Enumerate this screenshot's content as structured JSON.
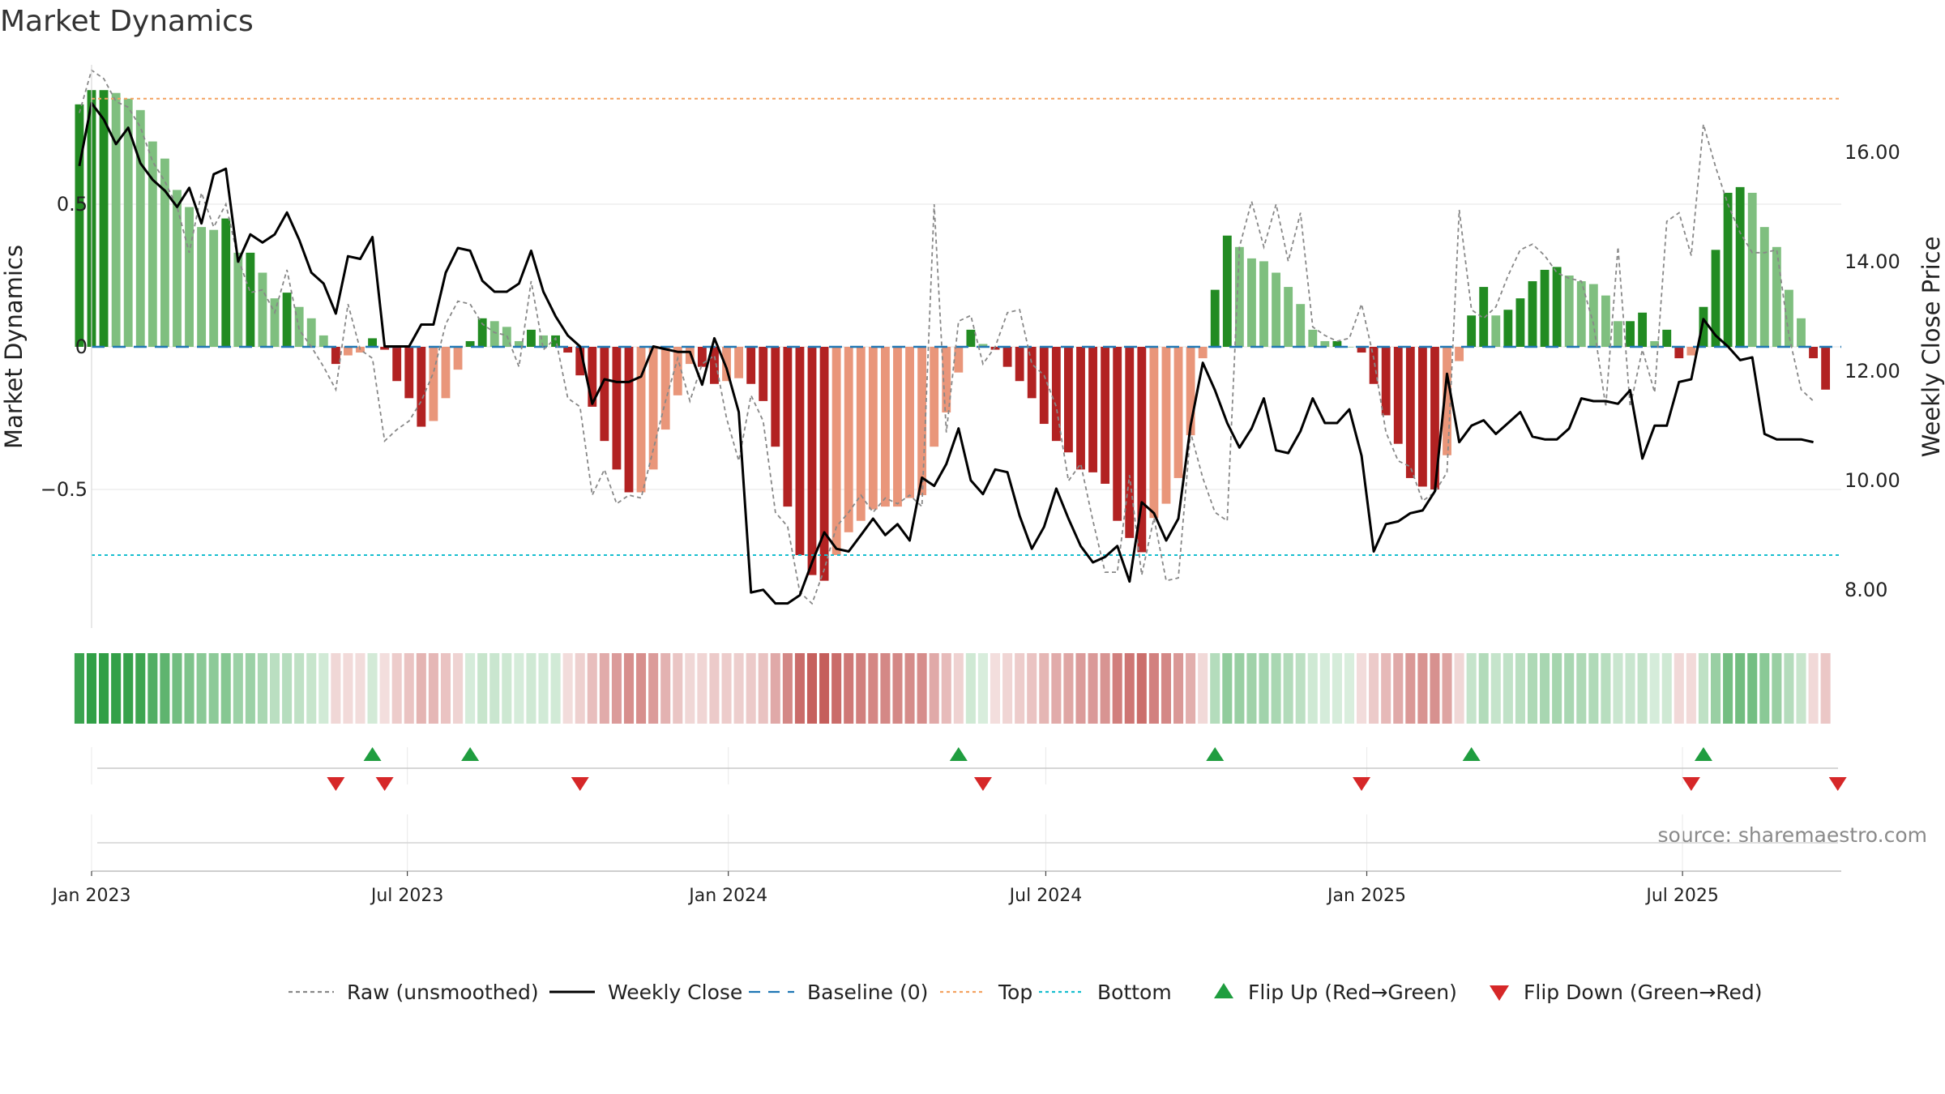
{
  "chart_data": {
    "type": "bar",
    "title": "Market Dynamics",
    "ylabel_left": "Market Dynamics",
    "ylabel_right": "Weekly Close Price",
    "ylim_left": [
      -0.98,
      0.98
    ],
    "ylim_right": [
      7.3,
      17.6
    ],
    "left_ticks": [
      0.5,
      0,
      -0.5
    ],
    "left_tick_labels": [
      "0.5",
      "0",
      "−0.5"
    ],
    "right_ticks": [
      16,
      14,
      12,
      10,
      8
    ],
    "right_tick_labels": [
      "16.00",
      "14.00",
      "12.00",
      "10.00",
      "8.00"
    ],
    "x_start": "2023-01-01",
    "x_end": "2025-09-30",
    "x_ticks": [
      "2023-01-01",
      "2023-07-01",
      "2024-01-01",
      "2024-07-01",
      "2025-01-01",
      "2025-07-01"
    ],
    "x_tick_labels": [
      "Jan 2023",
      "Jul 2023",
      "Jan 2024",
      "Jul 2024",
      "Jan 2025",
      "Jul 2025"
    ],
    "first_week": "2022-12-25",
    "top_line": 0.87,
    "bottom_line": -0.73,
    "baseline": 0,
    "grid": true,
    "momentum": [
      0.85,
      0.9,
      0.9,
      0.89,
      0.87,
      0.83,
      0.72,
      0.66,
      0.55,
      0.49,
      0.42,
      0.41,
      0.45,
      0.33,
      0.33,
      0.26,
      0.17,
      0.19,
      0.14,
      0.1,
      0.04,
      -0.06,
      -0.03,
      -0.02,
      0.03,
      -0.01,
      -0.12,
      -0.18,
      -0.28,
      -0.26,
      -0.18,
      -0.08,
      0.02,
      0.1,
      0.09,
      0.07,
      0.02,
      0.06,
      0.04,
      0.04,
      -0.02,
      -0.1,
      -0.21,
      -0.33,
      -0.43,
      -0.51,
      -0.51,
      -0.43,
      -0.29,
      -0.17,
      -0.06,
      -0.07,
      -0.13,
      -0.12,
      -0.11,
      -0.13,
      -0.19,
      -0.35,
      -0.56,
      -0.73,
      -0.8,
      -0.82,
      -0.73,
      -0.65,
      -0.61,
      -0.57,
      -0.56,
      -0.56,
      -0.53,
      -0.52,
      -0.35,
      -0.23,
      -0.09,
      0.06,
      0.01,
      -0.01,
      -0.07,
      -0.12,
      -0.18,
      -0.27,
      -0.33,
      -0.37,
      -0.43,
      -0.44,
      -0.48,
      -0.61,
      -0.67,
      -0.72,
      -0.6,
      -0.55,
      -0.46,
      -0.31,
      -0.04,
      0.2,
      0.39,
      0.35,
      0.31,
      0.3,
      0.26,
      0.21,
      0.15,
      0.06,
      0.02,
      0.02,
      0.0,
      -0.02,
      -0.13,
      -0.24,
      -0.34,
      -0.46,
      -0.49,
      -0.5,
      -0.38,
      -0.05,
      0.11,
      0.21,
      0.11,
      0.13,
      0.17,
      0.23,
      0.27,
      0.28,
      0.25,
      0.23,
      0.22,
      0.18,
      0.09,
      0.09,
      0.12,
      0.02,
      0.06,
      -0.04,
      -0.03,
      0.14,
      0.34,
      0.54,
      0.56,
      0.54,
      0.42,
      0.35,
      0.2,
      0.1,
      -0.04,
      -0.15
    ],
    "raw": [
      0.82,
      0.97,
      0.94,
      0.86,
      0.84,
      0.77,
      0.65,
      0.58,
      0.49,
      0.33,
      0.54,
      0.42,
      0.5,
      0.31,
      0.19,
      0.2,
      0.12,
      0.27,
      0.06,
      0.0,
      -0.07,
      -0.15,
      0.15,
      -0.01,
      -0.04,
      -0.33,
      -0.29,
      -0.26,
      -0.19,
      -0.09,
      0.08,
      0.16,
      0.15,
      0.08,
      0.05,
      0.04,
      -0.07,
      0.23,
      -0.01,
      0.03,
      -0.18,
      -0.21,
      -0.52,
      -0.43,
      -0.55,
      -0.52,
      -0.53,
      -0.36,
      -0.19,
      -0.04,
      -0.19,
      -0.06,
      -0.03,
      -0.25,
      -0.4,
      -0.17,
      -0.26,
      -0.58,
      -0.63,
      -0.86,
      -0.9,
      -0.78,
      -0.63,
      -0.58,
      -0.52,
      -0.58,
      -0.53,
      -0.55,
      -0.52,
      -0.56,
      0.5,
      -0.3,
      0.09,
      0.11,
      -0.06,
      0.0,
      0.12,
      0.13,
      -0.06,
      -0.1,
      -0.21,
      -0.47,
      -0.41,
      -0.61,
      -0.79,
      -0.79,
      -0.45,
      -0.8,
      -0.6,
      -0.82,
      -0.81,
      -0.3,
      -0.46,
      -0.58,
      -0.61,
      0.35,
      0.51,
      0.35,
      0.5,
      0.3,
      0.47,
      0.07,
      0.04,
      0.02,
      0.03,
      0.15,
      -0.04,
      -0.3,
      -0.4,
      -0.42,
      -0.54,
      -0.51,
      -0.44,
      0.48,
      0.13,
      0.1,
      0.14,
      0.25,
      0.34,
      0.36,
      0.32,
      0.26,
      0.24,
      0.23,
      0.08,
      -0.21,
      0.35,
      -0.21,
      -0.01,
      -0.16,
      0.44,
      0.47,
      0.32,
      0.78,
      0.63,
      0.5,
      0.4,
      0.33,
      0.33,
      0.34,
      0.04,
      -0.15,
      -0.19
    ],
    "close": [
      15.75,
      16.9,
      16.6,
      16.15,
      16.45,
      15.8,
      15.5,
      15.3,
      15.0,
      15.35,
      14.7,
      15.6,
      15.7,
      14.0,
      14.5,
      14.35,
      14.5,
      14.9,
      14.4,
      13.8,
      13.6,
      13.05,
      14.1,
      14.05,
      14.45,
      12.45,
      12.45,
      12.45,
      12.85,
      12.85,
      13.8,
      14.25,
      14.2,
      13.65,
      13.45,
      13.45,
      13.6,
      14.2,
      13.45,
      13.0,
      12.65,
      12.45,
      11.4,
      11.85,
      11.8,
      11.8,
      11.9,
      12.45,
      12.4,
      12.35,
      12.35,
      11.75,
      12.6,
      12.05,
      11.25,
      7.95,
      8.0,
      7.75,
      7.75,
      7.9,
      8.5,
      9.05,
      8.75,
      8.7,
      9.0,
      9.3,
      9.0,
      9.2,
      8.9,
      10.05,
      9.9,
      10.3,
      10.95,
      10.0,
      9.75,
      10.2,
      10.15,
      9.35,
      8.75,
      9.15,
      9.85,
      9.3,
      8.8,
      8.5,
      8.6,
      8.8,
      8.15,
      9.6,
      9.4,
      8.9,
      9.3,
      11.0,
      12.15,
      11.65,
      11.05,
      10.6,
      10.95,
      11.5,
      10.55,
      10.5,
      10.9,
      11.5,
      11.05,
      11.05,
      11.3,
      10.45,
      8.7,
      9.2,
      9.25,
      9.4,
      9.45,
      9.8,
      11.95,
      10.7,
      11.0,
      11.1,
      10.85,
      11.05,
      11.25,
      10.8,
      10.75,
      10.75,
      10.95,
      11.5,
      11.45,
      11.45,
      11.4,
      11.65,
      10.4,
      11.0,
      11.0,
      11.8,
      11.85,
      12.95,
      12.65,
      12.45,
      12.2,
      12.25,
      10.85,
      10.75,
      10.75,
      10.75,
      10.7
    ],
    "bar_colors": {
      "green_strong": "#228b22",
      "green_light": "#7fbf7f",
      "red_strong": "#b22222",
      "red_light": "#e9967a"
    },
    "line_colors": {
      "raw": "#888888",
      "close": "#000000",
      "baseline": "#1f77b4",
      "top": "#f4a261",
      "bottom": "#17becf"
    },
    "heat_colors": {
      "green": "#2f9e44",
      "red": "#c0504d"
    },
    "flip_up_weeks": [
      24,
      32,
      72,
      93,
      114,
      133
    ],
    "flip_down_weeks": [
      21,
      25,
      41,
      74,
      105,
      132,
      144
    ],
    "flip_up_color": "#1f9d3f",
    "flip_down_color": "#d62728",
    "legend": [
      {
        "label": "Raw (unsmoothed)",
        "kind": "line-dashed",
        "color": "#888888"
      },
      {
        "label": "Weekly Close",
        "kind": "line",
        "color": "#000000"
      },
      {
        "label": "Baseline (0)",
        "kind": "line-longdash",
        "color": "#1f77b4"
      },
      {
        "label": "Top",
        "kind": "line-dotted",
        "color": "#f4a261"
      },
      {
        "label": "Bottom",
        "kind": "line-dotted",
        "color": "#17becf"
      },
      {
        "label": "Flip Up (Red→Green)",
        "kind": "triangle-up",
        "color": "#1f9d3f"
      },
      {
        "label": "Flip Down (Green→Red)",
        "kind": "triangle-down",
        "color": "#d62728"
      }
    ],
    "legend_position": "bottom-center",
    "source": "source: sharemaestro.com"
  }
}
